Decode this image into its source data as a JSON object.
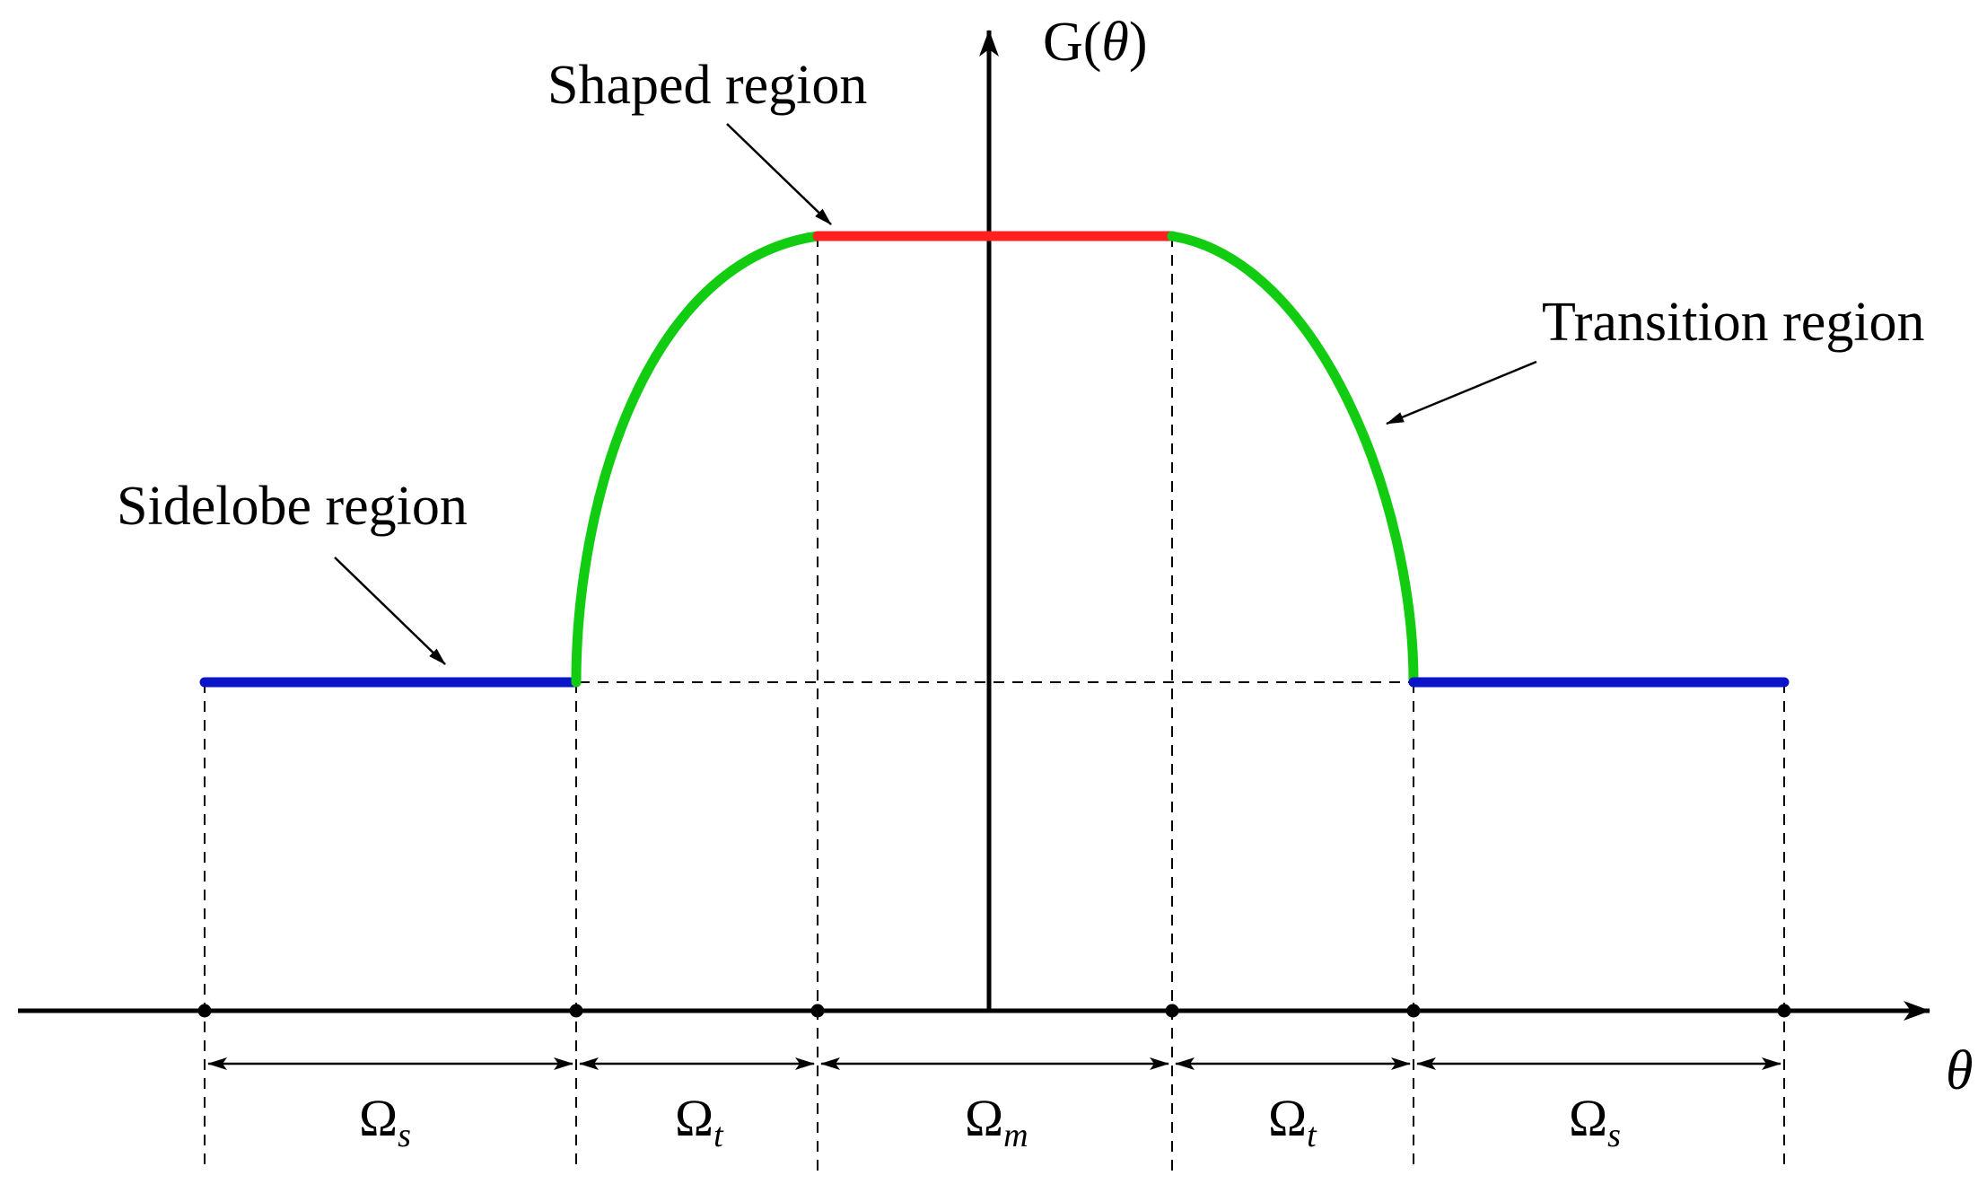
{
  "labels": {
    "shaped": "Shaped region",
    "transition": "Transition region",
    "sidelobe": "Sidelobe region"
  },
  "axes": {
    "y_label_prefix": "G(",
    "y_label_var": "θ",
    "y_label_suffix": ")",
    "x_label": "θ"
  },
  "intervals": [
    {
      "symbol": "Ω",
      "sub": "s"
    },
    {
      "symbol": "Ω",
      "sub": "t"
    },
    {
      "symbol": "Ω",
      "sub": "m"
    },
    {
      "symbol": "Ω",
      "sub": "t"
    },
    {
      "symbol": "Ω",
      "sub": "s"
    }
  ],
  "colors": {
    "sidelobe": "#0a14c8",
    "transition": "#12cc12",
    "shaped": "#ff2020",
    "axis": "#000000"
  }
}
